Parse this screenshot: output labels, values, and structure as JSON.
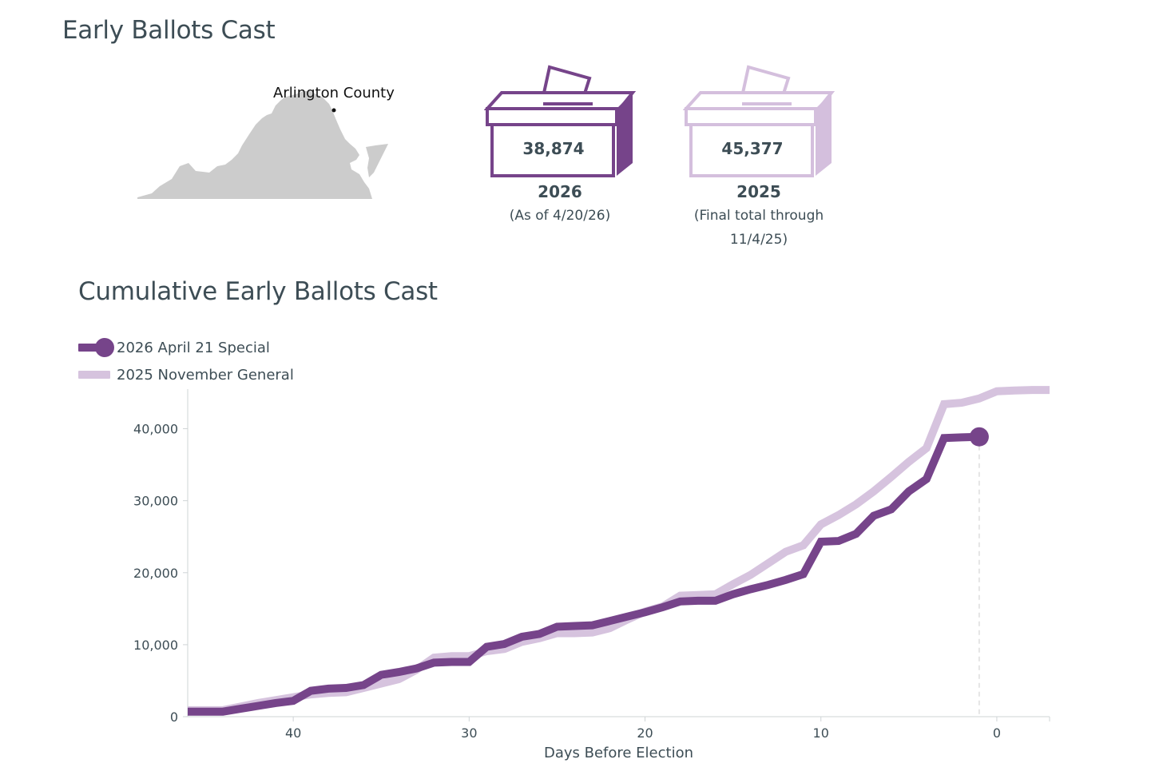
{
  "header": {
    "title": "Early Ballots Cast"
  },
  "map": {
    "label": "Arlington County",
    "fill_color": "#cccccc",
    "marker_color": "#111111"
  },
  "boxes": [
    {
      "count": "38,874",
      "year": "2026",
      "note": "(As of 4/20/26)",
      "color": "#76448a"
    },
    {
      "count": "45,377",
      "year": "2025",
      "note_line1": "(Final total through",
      "note_line2": "11/4/25)",
      "color": "#d4bfdd"
    }
  ],
  "chart_title": "Cumulative Early Ballots Cast",
  "legend": [
    {
      "label": "2026 April 21 Special",
      "color": "#76448a"
    },
    {
      "label": "2025 November General",
      "color": "#d6c3de"
    }
  ],
  "chart_data": {
    "type": "line",
    "title": "Cumulative Early Ballots Cast",
    "xlabel": "Days Before Election",
    "ylabel": "",
    "xlim": [
      46,
      -3
    ],
    "ylim": [
      0,
      45500
    ],
    "x_reversed": true,
    "xticks": [
      40,
      30,
      20,
      10,
      0
    ],
    "yticks": [
      0,
      10000,
      20000,
      30000,
      40000
    ],
    "ytick_labels": [
      "0",
      "10,000",
      "20,000",
      "30,000",
      "40,000"
    ],
    "reference_line_x": 1,
    "series": [
      {
        "name": "2026 April 21 Special",
        "color": "#76448a",
        "end_marker": true,
        "points": [
          [
            46,
            700
          ],
          [
            44,
            700
          ],
          [
            43,
            1100
          ],
          [
            42,
            1500
          ],
          [
            41,
            1900
          ],
          [
            40,
            2200
          ],
          [
            39,
            3600
          ],
          [
            38,
            3900
          ],
          [
            37,
            4000
          ],
          [
            36,
            4400
          ],
          [
            35,
            5800
          ],
          [
            34,
            6200
          ],
          [
            33,
            6700
          ],
          [
            32,
            7500
          ],
          [
            31,
            7600
          ],
          [
            30,
            7600
          ],
          [
            29,
            9700
          ],
          [
            28,
            10100
          ],
          [
            27,
            11100
          ],
          [
            26,
            11500
          ],
          [
            25,
            12500
          ],
          [
            24,
            12600
          ],
          [
            23,
            12700
          ],
          [
            22,
            13300
          ],
          [
            21,
            13900
          ],
          [
            20,
            14500
          ],
          [
            19,
            15200
          ],
          [
            18,
            16000
          ],
          [
            17,
            16100
          ],
          [
            16,
            16100
          ],
          [
            15,
            17000
          ],
          [
            14,
            17700
          ],
          [
            13,
            18300
          ],
          [
            12,
            19000
          ],
          [
            11,
            19800
          ],
          [
            10,
            24300
          ],
          [
            9,
            24400
          ],
          [
            8,
            25400
          ],
          [
            7,
            27900
          ],
          [
            6,
            28800
          ],
          [
            5,
            31300
          ],
          [
            4,
            33000
          ],
          [
            3,
            38700
          ],
          [
            2,
            38800
          ],
          [
            1,
            38874
          ]
        ]
      },
      {
        "name": "2025 November General",
        "color": "#d6c3de",
        "end_marker": false,
        "points": [
          [
            46,
            900
          ],
          [
            44,
            900
          ],
          [
            43,
            1400
          ],
          [
            42,
            1900
          ],
          [
            41,
            2300
          ],
          [
            40,
            2700
          ],
          [
            39,
            3100
          ],
          [
            38,
            3300
          ],
          [
            37,
            3400
          ],
          [
            36,
            4000
          ],
          [
            35,
            4600
          ],
          [
            34,
            5200
          ],
          [
            33,
            6500
          ],
          [
            32,
            8200
          ],
          [
            31,
            8400
          ],
          [
            30,
            8400
          ],
          [
            29,
            9100
          ],
          [
            28,
            9400
          ],
          [
            27,
            10400
          ],
          [
            26,
            10900
          ],
          [
            25,
            11600
          ],
          [
            24,
            11600
          ],
          [
            23,
            11700
          ],
          [
            22,
            12300
          ],
          [
            21,
            13500
          ],
          [
            20,
            14600
          ],
          [
            19,
            15300
          ],
          [
            18,
            16800
          ],
          [
            17,
            16900
          ],
          [
            16,
            17000
          ],
          [
            15,
            18400
          ],
          [
            14,
            19700
          ],
          [
            13,
            21300
          ],
          [
            12,
            22900
          ],
          [
            11,
            23800
          ],
          [
            10,
            26700
          ],
          [
            9,
            28000
          ],
          [
            8,
            29500
          ],
          [
            7,
            31300
          ],
          [
            6,
            33300
          ],
          [
            5,
            35400
          ],
          [
            4,
            37300
          ],
          [
            3,
            43400
          ],
          [
            2,
            43600
          ],
          [
            1,
            44200
          ],
          [
            0,
            45200
          ],
          [
            -1,
            45300
          ],
          [
            -2,
            45377
          ],
          [
            -3,
            45377
          ]
        ]
      }
    ]
  }
}
